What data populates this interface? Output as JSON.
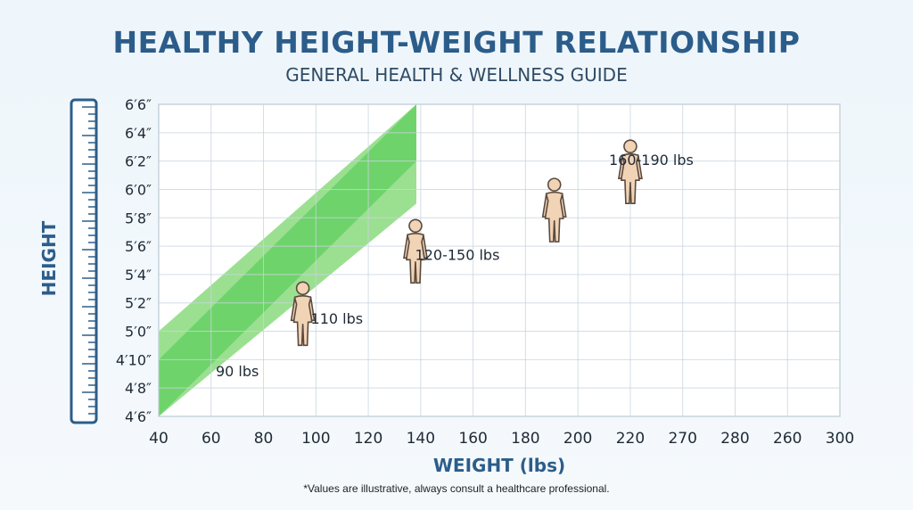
{
  "chart_data": {
    "type": "area",
    "title": "HEALTHY HEIGHT-WEIGHT RELATIONSHIP",
    "subtitle": "GENERAL HEALTH & WELLNESS GUIDE",
    "xlabel": "WEIGHT (lbs)",
    "ylabel": "HEIGHT",
    "x_ticks": [
      "40",
      "60",
      "80",
      "100",
      "120",
      "140",
      "160",
      "180",
      "200",
      "220",
      "270",
      "280",
      "260",
      "300"
    ],
    "y_ticks": [
      "4′6″",
      "4′8″",
      "4′10″",
      "5′0″",
      "5′2″",
      "5′4″",
      "5′6″",
      "5′8″",
      "6′0″",
      "6′2″",
      "6′4″",
      "6′6″"
    ],
    "y_values_inches": [
      54,
      56,
      58,
      60,
      62,
      64,
      66,
      68,
      72,
      74,
      76,
      78
    ],
    "grid": true,
    "bands": {
      "outer": {
        "left_top": 60,
        "left_bottom": 52,
        "right_top": 80,
        "right_bottom": 70,
        "color": "#9be091"
      },
      "inner": {
        "left_top": 58,
        "left_bottom": 54,
        "right_top": 80,
        "right_bottom": 74,
        "color": "#6fd36b"
      }
    },
    "annotations": [
      {
        "label": "90 lbs",
        "weight": 70,
        "height": 57.2
      },
      {
        "label": "110 lbs",
        "weight": 108,
        "height": 60.9
      },
      {
        "label": "120-150 lbs",
        "weight": 154,
        "height": 65.4
      },
      {
        "label": "160-190 lbs",
        "weight": 228,
        "height": 74.1
      }
    ],
    "figures": [
      {
        "weight": 95,
        "height": 61.4
      },
      {
        "weight": 138,
        "height": 65.8
      },
      {
        "weight": 191,
        "height": 69.4
      },
      {
        "weight": 220,
        "height": 73.4
      }
    ],
    "footnote": "*Values are illustrative, always consult a healthcare professional.",
    "colors": {
      "title": "#2c5d8a",
      "grid": "#c8d4df",
      "figure_fill": "#f1d3b6",
      "figure_stroke": "#5a4a3f"
    }
  }
}
